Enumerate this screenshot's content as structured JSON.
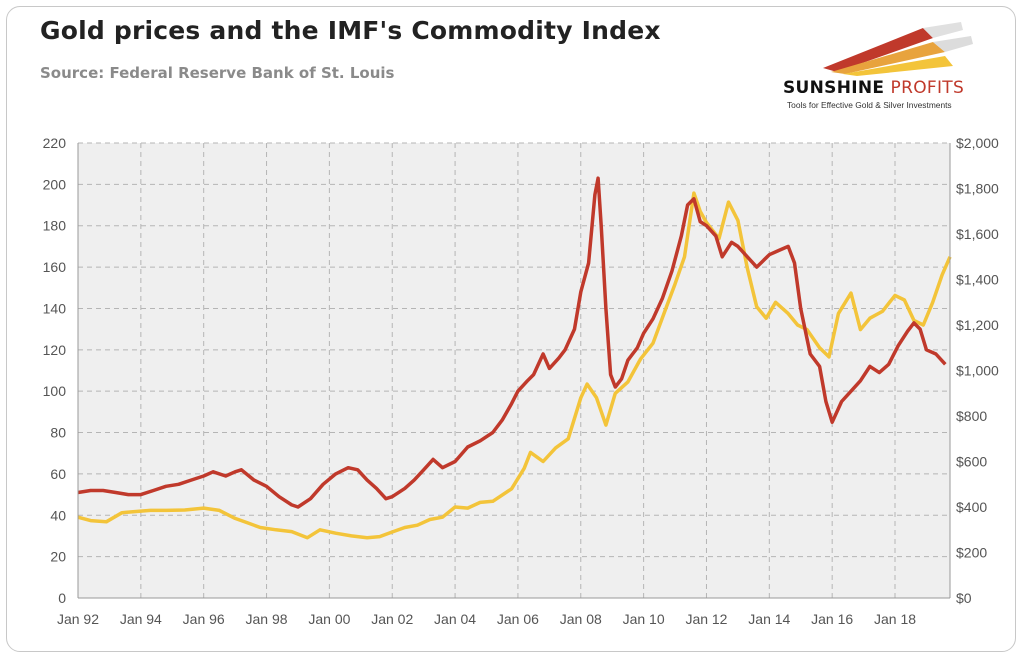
{
  "header": {
    "title": "Gold prices and the IMF's Commodity Index",
    "subtitle": "Source: Federal Reserve Bank of St. Louis"
  },
  "logo": {
    "name_bold": "SUNSHINE",
    "name_light": "PROFITS",
    "tagline": "Tools for Effective Gold & Silver Investments",
    "colors": [
      "#c0392b",
      "#e8a33d",
      "#f3c43a"
    ]
  },
  "chart_data": {
    "type": "line",
    "title": "Gold prices and the IMF's Commodity Index",
    "subtitle": "Source: Federal Reserve Bank of St. Louis",
    "grid": true,
    "legend": "none",
    "x_axis": {
      "range": [
        1992,
        2019.75
      ],
      "ticks": [
        {
          "x": 1992,
          "label": "Jan 92"
        },
        {
          "x": 1994,
          "label": "Jan 94"
        },
        {
          "x": 1996,
          "label": "Jan 96"
        },
        {
          "x": 1998,
          "label": "Jan 98"
        },
        {
          "x": 2000,
          "label": "Jan 00"
        },
        {
          "x": 2002,
          "label": "Jan 02"
        },
        {
          "x": 2004,
          "label": "Jan 04"
        },
        {
          "x": 2006,
          "label": "Jan 06"
        },
        {
          "x": 2008,
          "label": "Jan 08"
        },
        {
          "x": 2010,
          "label": "Jan 10"
        },
        {
          "x": 2012,
          "label": "Jan 12"
        },
        {
          "x": 2014,
          "label": "Jan 14"
        },
        {
          "x": 2016,
          "label": "Jan 16"
        },
        {
          "x": 2018,
          "label": "Jan 18"
        }
      ]
    },
    "y_left": {
      "range": [
        0,
        220
      ],
      "ticks": [
        0,
        20,
        40,
        60,
        80,
        100,
        120,
        140,
        160,
        180,
        200,
        220
      ],
      "labels": [
        "0",
        "20",
        "40",
        "60",
        "80",
        "100",
        "120",
        "140",
        "160",
        "180",
        "200",
        "220"
      ]
    },
    "y_right": {
      "range": [
        0,
        2000
      ],
      "ticks": [
        0,
        200,
        400,
        600,
        800,
        1000,
        1200,
        1400,
        1600,
        1800,
        2000
      ],
      "labels": [
        "$0",
        "$200",
        "$400",
        "$600",
        "$800",
        "$1,000",
        "$1,200",
        "$1,400",
        "$1,600",
        "$1,800",
        "$2,000"
      ]
    },
    "series": [
      {
        "axis": "left",
        "color": "#c0392b",
        "points": [
          [
            1992.0,
            51
          ],
          [
            1992.4,
            52
          ],
          [
            1992.8,
            52
          ],
          [
            1993.2,
            51
          ],
          [
            1993.6,
            50
          ],
          [
            1994.0,
            50
          ],
          [
            1994.4,
            52
          ],
          [
            1994.8,
            54
          ],
          [
            1995.2,
            55
          ],
          [
            1995.6,
            57
          ],
          [
            1996.0,
            59
          ],
          [
            1996.3,
            61
          ],
          [
            1996.7,
            59
          ],
          [
            1997.0,
            61
          ],
          [
            1997.2,
            62
          ],
          [
            1997.6,
            57
          ],
          [
            1998.0,
            54
          ],
          [
            1998.4,
            49
          ],
          [
            1998.8,
            45
          ],
          [
            1999.0,
            44
          ],
          [
            1999.4,
            48
          ],
          [
            1999.8,
            55
          ],
          [
            2000.2,
            60
          ],
          [
            2000.6,
            63
          ],
          [
            2000.9,
            62
          ],
          [
            2001.2,
            57
          ],
          [
            2001.5,
            53
          ],
          [
            2001.8,
            48
          ],
          [
            2002.0,
            49
          ],
          [
            2002.4,
            53
          ],
          [
            2002.7,
            57
          ],
          [
            2003.0,
            62
          ],
          [
            2003.3,
            67
          ],
          [
            2003.6,
            63
          ],
          [
            2004.0,
            66
          ],
          [
            2004.4,
            73
          ],
          [
            2004.8,
            76
          ],
          [
            2005.2,
            80
          ],
          [
            2005.5,
            86
          ],
          [
            2005.8,
            94
          ],
          [
            2006.0,
            100
          ],
          [
            2006.3,
            105
          ],
          [
            2006.5,
            108
          ],
          [
            2006.8,
            118
          ],
          [
            2007.0,
            111
          ],
          [
            2007.3,
            116
          ],
          [
            2007.5,
            120
          ],
          [
            2007.8,
            130
          ],
          [
            2008.0,
            148
          ],
          [
            2008.25,
            162
          ],
          [
            2008.45,
            195
          ],
          [
            2008.55,
            203
          ],
          [
            2008.65,
            180
          ],
          [
            2008.8,
            140
          ],
          [
            2008.95,
            108
          ],
          [
            2009.1,
            102
          ],
          [
            2009.3,
            106
          ],
          [
            2009.5,
            115
          ],
          [
            2009.8,
            121
          ],
          [
            2010.0,
            128
          ],
          [
            2010.3,
            135
          ],
          [
            2010.6,
            145
          ],
          [
            2010.9,
            158
          ],
          [
            2011.2,
            175
          ],
          [
            2011.4,
            190
          ],
          [
            2011.6,
            193
          ],
          [
            2011.8,
            182
          ],
          [
            2012.0,
            180
          ],
          [
            2012.3,
            175
          ],
          [
            2012.5,
            165
          ],
          [
            2012.8,
            172
          ],
          [
            2013.0,
            170
          ],
          [
            2013.3,
            165
          ],
          [
            2013.6,
            160
          ],
          [
            2014.0,
            166
          ],
          [
            2014.3,
            168
          ],
          [
            2014.6,
            170
          ],
          [
            2014.8,
            162
          ],
          [
            2015.0,
            140
          ],
          [
            2015.3,
            118
          ],
          [
            2015.6,
            112
          ],
          [
            2015.8,
            95
          ],
          [
            2016.0,
            85
          ],
          [
            2016.3,
            95
          ],
          [
            2016.6,
            100
          ],
          [
            2016.9,
            105
          ],
          [
            2017.2,
            112
          ],
          [
            2017.5,
            109
          ],
          [
            2017.8,
            113
          ],
          [
            2018.1,
            122
          ],
          [
            2018.4,
            129
          ],
          [
            2018.6,
            133
          ],
          [
            2018.8,
            130
          ],
          [
            2019.0,
            120
          ],
          [
            2019.3,
            118
          ],
          [
            2019.6,
            113
          ]
        ]
      },
      {
        "axis": "right",
        "color": "#f3c43a",
        "points": [
          [
            1992.0,
            355
          ],
          [
            1992.4,
            340
          ],
          [
            1992.9,
            335
          ],
          [
            1993.4,
            375
          ],
          [
            1993.8,
            380
          ],
          [
            1994.3,
            385
          ],
          [
            1994.8,
            385
          ],
          [
            1995.4,
            387
          ],
          [
            1996.0,
            395
          ],
          [
            1996.5,
            385
          ],
          [
            1997.0,
            350
          ],
          [
            1997.4,
            330
          ],
          [
            1997.8,
            310
          ],
          [
            1998.3,
            300
          ],
          [
            1998.8,
            292
          ],
          [
            1999.3,
            265
          ],
          [
            1999.7,
            300
          ],
          [
            2000.2,
            285
          ],
          [
            2000.7,
            273
          ],
          [
            2001.2,
            265
          ],
          [
            2001.6,
            270
          ],
          [
            2002.0,
            290
          ],
          [
            2002.4,
            310
          ],
          [
            2002.8,
            320
          ],
          [
            2003.2,
            345
          ],
          [
            2003.6,
            355
          ],
          [
            2004.0,
            400
          ],
          [
            2004.4,
            395
          ],
          [
            2004.8,
            420
          ],
          [
            2005.2,
            425
          ],
          [
            2005.8,
            480
          ],
          [
            2006.2,
            570
          ],
          [
            2006.4,
            640
          ],
          [
            2006.8,
            600
          ],
          [
            2007.2,
            660
          ],
          [
            2007.6,
            700
          ],
          [
            2008.0,
            880
          ],
          [
            2008.2,
            940
          ],
          [
            2008.5,
            880
          ],
          [
            2008.8,
            760
          ],
          [
            2009.1,
            900
          ],
          [
            2009.5,
            950
          ],
          [
            2009.9,
            1050
          ],
          [
            2010.3,
            1120
          ],
          [
            2010.7,
            1270
          ],
          [
            2011.0,
            1380
          ],
          [
            2011.3,
            1500
          ],
          [
            2011.6,
            1780
          ],
          [
            2011.8,
            1700
          ],
          [
            2012.0,
            1650
          ],
          [
            2012.4,
            1580
          ],
          [
            2012.7,
            1740
          ],
          [
            2013.0,
            1660
          ],
          [
            2013.3,
            1450
          ],
          [
            2013.6,
            1280
          ],
          [
            2013.9,
            1230
          ],
          [
            2014.2,
            1300
          ],
          [
            2014.6,
            1250
          ],
          [
            2014.9,
            1200
          ],
          [
            2015.2,
            1180
          ],
          [
            2015.6,
            1100
          ],
          [
            2015.9,
            1060
          ],
          [
            2016.2,
            1250
          ],
          [
            2016.6,
            1340
          ],
          [
            2016.9,
            1180
          ],
          [
            2017.2,
            1230
          ],
          [
            2017.6,
            1260
          ],
          [
            2018.0,
            1330
          ],
          [
            2018.3,
            1310
          ],
          [
            2018.6,
            1220
          ],
          [
            2018.9,
            1200
          ],
          [
            2019.2,
            1300
          ],
          [
            2019.5,
            1420
          ],
          [
            2019.75,
            1500
          ]
        ]
      }
    ]
  }
}
